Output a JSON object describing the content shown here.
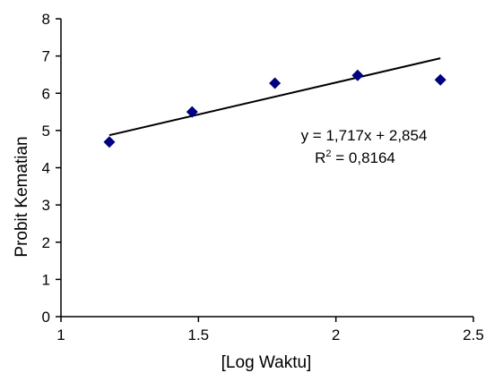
{
  "chart_data": {
    "type": "scatter",
    "xlabel": "[Log Waktu]",
    "ylabel": "Probit Kematian",
    "xlim": [
      1,
      2.5
    ],
    "ylim": [
      0,
      8
    ],
    "x_ticks": [
      1,
      1.5,
      2,
      2.5
    ],
    "y_ticks": [
      0,
      1,
      2,
      3,
      4,
      5,
      6,
      7,
      8
    ],
    "grid": false,
    "series": [
      {
        "marker": "diamond",
        "color": "#000080",
        "points": [
          {
            "x": 1.176,
            "y": 4.69
          },
          {
            "x": 1.477,
            "y": 5.5
          },
          {
            "x": 1.778,
            "y": 6.27
          },
          {
            "x": 2.079,
            "y": 6.48
          },
          {
            "x": 2.38,
            "y": 6.36
          }
        ]
      }
    ],
    "trendline": {
      "slope": 1.717,
      "intercept": 2.854,
      "x_range": [
        1.176,
        2.38
      ],
      "color": "#000000",
      "equation_label": "y = 1,717x  + 2,854",
      "r2_prefix": "R",
      "r2_sup": "2",
      "r2_suffix": " = 0,8164"
    }
  }
}
